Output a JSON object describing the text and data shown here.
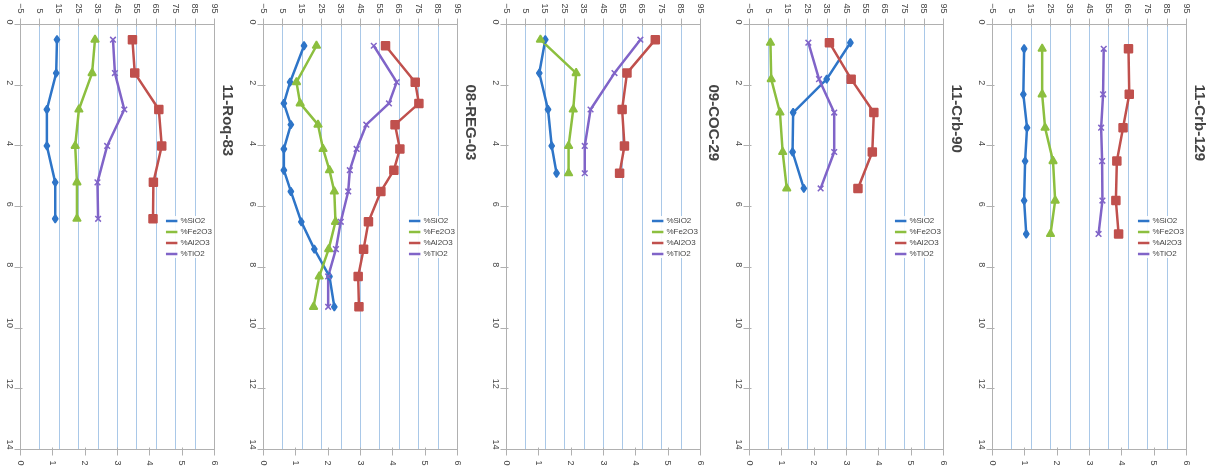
{
  "chart_data": [
    {
      "type": "line",
      "title": "11-Roq-83",
      "xlim": [
        -5,
        95
      ],
      "xticks": [
        -5,
        5,
        15,
        25,
        35,
        45,
        55,
        65,
        75,
        85,
        95
      ],
      "x2lim": [
        0,
        6
      ],
      "x2ticks": [
        0,
        1,
        2,
        3,
        4,
        5,
        6
      ],
      "ylim": [
        14,
        0
      ],
      "yticks": [
        0,
        2,
        4,
        6,
        8,
        10,
        12,
        14
      ],
      "grid": "x",
      "legend": "right",
      "series": [
        {
          "name": "%SiO2",
          "color": "#2e75c8",
          "marker": "diamond",
          "x": [
            13.8,
            13.4,
            8.6,
            8.6,
            12.9,
            12.9
          ],
          "values": [
            0.5,
            1.6,
            2.8,
            4.0,
            5.2,
            6.4
          ]
        },
        {
          "name": "%Fe2O3",
          "color": "#8cbf3f",
          "marker": "triangle",
          "x": [
            33.4,
            31.9,
            25.1,
            23.2,
            24.1,
            24.1
          ],
          "values": [
            0.5,
            1.6,
            2.8,
            4.0,
            5.2,
            6.4
          ]
        },
        {
          "name": "%Al2O3",
          "color": "#c0504d",
          "marker": "square",
          "x": [
            52.7,
            53.9,
            66.3,
            67.8,
            63.5,
            63.3
          ],
          "values": [
            0.5,
            1.6,
            2.8,
            4.0,
            5.2,
            6.4
          ]
        },
        {
          "name": "%TiO2",
          "color": "#8064c8",
          "marker": "cross",
          "axis": "x2",
          "x": [
            2.86,
            2.92,
            3.21,
            2.68,
            2.38,
            2.4
          ],
          "values": [
            0.5,
            1.6,
            2.8,
            4.0,
            5.2,
            6.4
          ]
        }
      ]
    },
    {
      "type": "line",
      "title": "08-REG-03",
      "xlim": [
        -5,
        95
      ],
      "xticks": [
        -5,
        5,
        15,
        25,
        35,
        45,
        55,
        65,
        75,
        85,
        95
      ],
      "x2lim": [
        0,
        6
      ],
      "x2ticks": [
        0,
        1,
        2,
        3,
        4,
        5,
        6
      ],
      "ylim": [
        14,
        0
      ],
      "yticks": [
        0,
        2,
        4,
        6,
        8,
        10,
        12,
        14
      ],
      "grid": "x",
      "legend": "right",
      "series": [
        {
          "name": "%SiO2",
          "color": "#2e75c8",
          "marker": "diamond",
          "x": [
            15.9,
            8.7,
            5.5,
            9.1,
            5.5,
            5.5,
            9.1,
            14.5,
            21.2,
            29.0,
            31.5
          ],
          "values": [
            0.7,
            1.9,
            2.6,
            3.3,
            4.1,
            4.8,
            5.5,
            6.5,
            7.4,
            8.3,
            9.3
          ]
        },
        {
          "name": "%Fe2O3",
          "color": "#8cbf3f",
          "marker": "triangle",
          "x": [
            22.3,
            12.0,
            13.9,
            23.1,
            25.7,
            29.0,
            31.5,
            32.1,
            28.6,
            23.7,
            20.8
          ],
          "values": [
            0.7,
            1.9,
            2.6,
            3.3,
            4.1,
            4.8,
            5.5,
            6.5,
            7.4,
            8.3,
            9.3
          ]
        },
        {
          "name": "%Al2O3",
          "color": "#c0504d",
          "marker": "square",
          "x": [
            57.9,
            73.2,
            75.1,
            62.8,
            65.3,
            62.2,
            55.5,
            49.1,
            46.6,
            43.8,
            44.2
          ],
          "values": [
            0.7,
            1.9,
            2.6,
            3.3,
            4.1,
            4.8,
            5.5,
            6.5,
            7.4,
            8.3,
            9.3
          ]
        },
        {
          "name": "%TiO2",
          "color": "#8064c8",
          "marker": "cross",
          "axis": "x2",
          "x": [
            3.41,
            4.12,
            3.88,
            3.18,
            2.88,
            2.67,
            2.62,
            2.39,
            2.24,
            2.0,
            2.0
          ],
          "values": [
            0.7,
            1.9,
            2.6,
            3.3,
            4.1,
            4.8,
            5.5,
            6.5,
            7.4,
            8.3,
            9.3
          ]
        }
      ]
    },
    {
      "type": "line",
      "title": "09-COC-29",
      "xlim": [
        -5,
        95
      ],
      "xticks": [
        -5,
        5,
        15,
        25,
        35,
        45,
        55,
        65,
        75,
        85,
        95
      ],
      "x2lim": [
        0,
        6
      ],
      "x2ticks": [
        0,
        1,
        2,
        3,
        4,
        5,
        6
      ],
      "ylim": [
        14,
        0
      ],
      "yticks": [
        0,
        2,
        4,
        6,
        8,
        10,
        12,
        14
      ],
      "grid": "x",
      "legend": "right",
      "series": [
        {
          "name": "%SiO2",
          "color": "#2e75c8",
          "marker": "diamond",
          "x": [
            15.0,
            11.9,
            16.4,
            18.3,
            20.8
          ],
          "values": [
            0.5,
            1.6,
            2.8,
            4.0,
            4.9
          ]
        },
        {
          "name": "%Fe2O3",
          "color": "#8cbf3f",
          "marker": "triangle",
          "x": [
            12.5,
            30.9,
            29.4,
            27.0,
            27.0
          ],
          "values": [
            0.5,
            1.6,
            2.8,
            4.0,
            4.9
          ]
        },
        {
          "name": "%Al2O3",
          "color": "#c0504d",
          "marker": "square",
          "x": [
            71.7,
            57.1,
            54.6,
            55.8,
            53.3
          ],
          "values": [
            0.5,
            1.6,
            2.8,
            4.0,
            4.9
          ]
        },
        {
          "name": "%TiO2",
          "color": "#8064c8",
          "marker": "cross",
          "axis": "x2",
          "x": [
            4.14,
            3.34,
            2.6,
            2.42,
            2.42
          ],
          "values": [
            0.5,
            1.6,
            2.8,
            4.0,
            4.9
          ]
        }
      ]
    },
    {
      "type": "line",
      "title": "11-Crb-90",
      "xlim": [
        -5,
        95
      ],
      "xticks": [
        -5,
        5,
        15,
        25,
        35,
        45,
        55,
        65,
        75,
        85,
        95
      ],
      "x2lim": [
        0,
        6
      ],
      "x2ticks": [
        0,
        1,
        2,
        3,
        4,
        5,
        6
      ],
      "ylim": [
        14,
        0
      ],
      "yticks": [
        0,
        2,
        4,
        6,
        8,
        10,
        12,
        14
      ],
      "grid": "x",
      "legend": "right",
      "series": [
        {
          "name": "%SiO2",
          "color": "#2e75c8",
          "marker": "diamond",
          "x": [
            47.0,
            34.8,
            17.5,
            17.2,
            23.0
          ],
          "values": [
            0.6,
            1.8,
            2.9,
            4.2,
            5.4
          ]
        },
        {
          "name": "%Fe2O3",
          "color": "#8cbf3f",
          "marker": "triangle",
          "x": [
            5.8,
            6.2,
            10.7,
            12.1,
            14.2
          ],
          "values": [
            0.6,
            1.8,
            2.9,
            4.2,
            5.4
          ]
        },
        {
          "name": "%Al2O3",
          "color": "#c0504d",
          "marker": "square",
          "x": [
            36.2,
            47.4,
            59.1,
            58.3,
            50.9
          ],
          "values": [
            0.6,
            1.8,
            2.9,
            4.2,
            5.4
          ]
        },
        {
          "name": "%TiO2",
          "color": "#8064c8",
          "marker": "cross",
          "axis": "x2",
          "x": [
            1.82,
            2.15,
            2.62,
            2.62,
            2.2
          ],
          "values": [
            0.6,
            1.8,
            2.9,
            4.2,
            5.4
          ]
        }
      ]
    },
    {
      "type": "line",
      "title": "11-Crb-129",
      "xlim": [
        -5,
        95
      ],
      "xticks": [
        -5,
        5,
        15,
        25,
        35,
        45,
        55,
        65,
        75,
        85,
        95
      ],
      "x2lim": [
        0,
        6
      ],
      "x2ticks": [
        0,
        1,
        2,
        3,
        4,
        5,
        6
      ],
      "ylim": [
        14,
        0
      ],
      "yticks": [
        0,
        2,
        4,
        6,
        8,
        10,
        12,
        14
      ],
      "grid": "x",
      "legend": "right",
      "series": [
        {
          "name": "%SiO2",
          "color": "#2e75c8",
          "marker": "diamond",
          "x": [
            11.3,
            10.9,
            12.8,
            11.8,
            11.3,
            12.4
          ],
          "values": [
            0.8,
            2.3,
            3.4,
            4.5,
            5.8,
            6.9
          ]
        },
        {
          "name": "%Fe2O3",
          "color": "#8cbf3f",
          "marker": "triangle",
          "x": [
            20.6,
            20.6,
            22.1,
            26.2,
            27.3,
            24.9
          ],
          "values": [
            0.8,
            2.3,
            3.4,
            4.5,
            5.8,
            6.9
          ]
        },
        {
          "name": "%Al2O3",
          "color": "#c0504d",
          "marker": "square",
          "x": [
            65.1,
            65.5,
            62.3,
            59.1,
            58.6,
            60.0
          ],
          "values": [
            0.8,
            2.3,
            3.4,
            4.5,
            5.8,
            6.9
          ]
        },
        {
          "name": "%TiO2",
          "color": "#8064c8",
          "marker": "cross",
          "axis": "x2",
          "x": [
            3.44,
            3.42,
            3.36,
            3.39,
            3.4,
            3.28
          ],
          "values": [
            0.8,
            2.3,
            3.4,
            4.5,
            5.8,
            6.9
          ]
        }
      ]
    }
  ]
}
